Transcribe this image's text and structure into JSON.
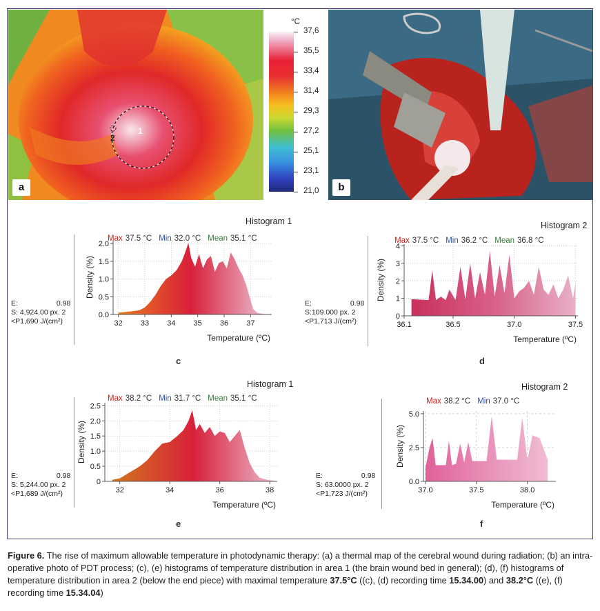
{
  "panel_a": {
    "letter": "a",
    "area_labels": [
      "1",
      "2"
    ],
    "unit": "°C",
    "scale_ticks": [
      "37,6",
      "35,5",
      "33,4",
      "31,4",
      "29,3",
      "27,2",
      "25,1",
      "23,1",
      "21,0"
    ]
  },
  "panel_b": {
    "letter": "b"
  },
  "chart_data": [
    {
      "type": "area",
      "panel": "c",
      "title": "Histogram 1",
      "stats": {
        "max_label": "Max",
        "max": "37.5 °C",
        "min_label": "Min",
        "min": "32.0 °C",
        "mean_label": "Mean",
        "mean": "35.1 °C"
      },
      "side": [
        "E:",
        "0.98",
        "S: 4,924.00  px. 2",
        "<P1,690 J/(cm²)"
      ],
      "xlabel": "Temperature (ºC)",
      "ylabel": "Density (%)",
      "xlim": [
        31.8,
        37.8
      ],
      "ylim": [
        0,
        2.1
      ],
      "x_ticks": [
        32,
        33,
        34,
        35,
        36,
        37
      ],
      "x_tick_labels": [
        "32",
        "33",
        "34",
        "35",
        "36",
        "37"
      ],
      "y_ticks": [
        0,
        0.5,
        1.0,
        1.5,
        2.0
      ],
      "y_tick_labels": [
        "0.0",
        "0.5",
        "1.0",
        "1.5",
        "2.0"
      ],
      "x": [
        32.0,
        32.4,
        32.8,
        33.0,
        33.2,
        33.4,
        33.6,
        33.8,
        34.0,
        34.2,
        34.4,
        34.55,
        34.65,
        34.75,
        34.9,
        35.05,
        35.2,
        35.35,
        35.5,
        35.65,
        35.8,
        35.95,
        36.1,
        36.25,
        36.4,
        36.55,
        36.7,
        36.85,
        37.0,
        37.1,
        37.25,
        37.4,
        37.5
      ],
      "values": [
        0.05,
        0.08,
        0.12,
        0.2,
        0.35,
        0.55,
        0.8,
        1.0,
        1.1,
        1.25,
        1.5,
        1.8,
        2.02,
        1.6,
        1.35,
        1.7,
        1.3,
        1.55,
        1.65,
        1.2,
        1.45,
        1.5,
        1.3,
        1.75,
        1.55,
        1.3,
        1.1,
        0.8,
        0.4,
        0.15,
        0.05,
        0.03,
        0.02
      ],
      "colors": [
        "#e87a1a",
        "#d8203a",
        "#eab8cc"
      ]
    },
    {
      "type": "area",
      "panel": "d",
      "title": "Histogram 2",
      "stats": {
        "max_label": "Max",
        "max": "37.5 °C",
        "min_label": "Min",
        "min": "36.2 °C",
        "mean_label": "Mean",
        "mean": "36.8 °C"
      },
      "side": [
        "E:",
        "0.98",
        "S:109.000  px. 2",
        "<P1,713 J/(cm²)"
      ],
      "xlabel": "Temperature (ºC)",
      "ylabel": "Density (%)",
      "xlim": [
        36.1,
        37.52
      ],
      "ylim": [
        0,
        4.1
      ],
      "x_ticks": [
        36.1,
        36.5,
        37.0,
        37.5
      ],
      "x_tick_labels": [
        "36.1",
        "36.5",
        "37.0",
        "37.5"
      ],
      "y_ticks": [
        0,
        1,
        2,
        3,
        4
      ],
      "y_tick_labels": [
        "0",
        "1",
        "2",
        "3",
        "4"
      ],
      "x": [
        36.16,
        36.3,
        36.33,
        36.36,
        36.4,
        36.44,
        36.47,
        36.52,
        36.56,
        36.6,
        36.64,
        36.68,
        36.72,
        36.76,
        36.8,
        36.84,
        36.88,
        36.92,
        36.96,
        37.0,
        37.04,
        37.08,
        37.12,
        37.16,
        37.2,
        37.24,
        37.28,
        37.32,
        37.36,
        37.4,
        37.44,
        37.48,
        37.5
      ],
      "values": [
        0.95,
        0.9,
        2.6,
        0.9,
        1.1,
        0.9,
        1.5,
        0.9,
        2.8,
        0.95,
        3.0,
        1.0,
        2.5,
        1.2,
        3.7,
        1.1,
        2.9,
        1.3,
        3.5,
        1.0,
        1.4,
        1.6,
        2.0,
        1.2,
        2.8,
        1.5,
        1.2,
        1.8,
        1.0,
        1.5,
        2.3,
        1.0,
        1.9
      ],
      "colors": [
        "#c8305a",
        "#d8608a",
        "#e8b0c6"
      ]
    },
    {
      "type": "area",
      "panel": "e",
      "title": "Histogram 1",
      "stats": {
        "max_label": "Max",
        "max": "38.2 °C",
        "min_label": "Min",
        "min": "31.7 °C",
        "mean_label": "Mean",
        "mean": "35.1 °C"
      },
      "side": [
        "E:",
        "0.98",
        "S: 5,244.00  px. 2",
        "<P1,689 J/(cm²)"
      ],
      "xlabel": "Temperature (ºC)",
      "ylabel": "Density (%)",
      "xlim": [
        31.4,
        38.3
      ],
      "ylim": [
        0,
        2.6
      ],
      "x_ticks": [
        32,
        34,
        36,
        38
      ],
      "x_tick_labels": [
        "32",
        "34",
        "36",
        "38"
      ],
      "y_ticks": [
        0,
        0.5,
        1.0,
        1.5,
        2.0,
        2.5
      ],
      "y_tick_labels": [
        "0",
        "0.5",
        "1.0",
        "1.5",
        "2.0",
        "2.5"
      ],
      "x": [
        31.7,
        32.0,
        32.4,
        32.8,
        33.1,
        33.4,
        33.7,
        34.0,
        34.3,
        34.55,
        34.75,
        34.9,
        35.05,
        35.2,
        35.4,
        35.6,
        35.8,
        36.0,
        36.2,
        36.4,
        36.6,
        36.8,
        37.0,
        37.2,
        37.4,
        37.6,
        37.9,
        38.2
      ],
      "values": [
        0.05,
        0.1,
        0.3,
        0.5,
        0.7,
        1.0,
        1.25,
        1.3,
        1.5,
        1.7,
        2.0,
        2.35,
        1.7,
        1.9,
        1.6,
        1.8,
        1.5,
        1.65,
        1.6,
        1.3,
        1.5,
        1.7,
        1.1,
        0.6,
        0.3,
        0.12,
        0.05,
        0.02
      ],
      "colors": [
        "#d0761c",
        "#d8203a",
        "#eab8cc"
      ]
    },
    {
      "type": "area",
      "panel": "f",
      "title": "Histogram 2",
      "stats": {
        "max_label": "Max",
        "max": "38.2 °C",
        "min_label": "Min",
        "min": "37.0 °C"
      },
      "side": [
        "E:",
        "0.98",
        "S: 63.0000  px. 2",
        "<P1,723 J/(cm²)"
      ],
      "xlabel": "Temperature (ºC)",
      "ylabel": "Density (%)",
      "xlim": [
        36.98,
        38.28
      ],
      "ylim": [
        0,
        5.2
      ],
      "x_ticks": [
        37.0,
        37.5,
        38.0
      ],
      "x_tick_labels": [
        "37.0",
        "37.5",
        "38.0"
      ],
      "y_ticks": [
        0,
        2.5,
        5.0
      ],
      "y_tick_labels": [
        "0.0",
        "2.5",
        "5.0"
      ],
      "x": [
        37.0,
        37.04,
        37.07,
        37.1,
        37.2,
        37.23,
        37.26,
        37.3,
        37.34,
        37.38,
        37.42,
        37.46,
        37.5,
        37.6,
        37.65,
        37.7,
        37.8,
        37.9,
        37.95,
        38.0,
        38.05,
        38.12,
        38.2
      ],
      "values": [
        1.0,
        2.5,
        3.2,
        1.2,
        1.2,
        3.0,
        1.2,
        1.3,
        2.8,
        1.4,
        2.9,
        1.5,
        1.5,
        1.5,
        4.8,
        1.6,
        1.6,
        1.6,
        4.7,
        1.6,
        3.4,
        3.2,
        1.6
      ],
      "colors": [
        "#e0609a",
        "#e890b8",
        "#f0bcd2"
      ]
    }
  ],
  "caption": {
    "figure_label": "Figure 6.",
    "part1": " The rise of maximum allowable temperature in photodynamic therapy: (a) a thermal map of the cerebral wound during radiation; (b) an intra-operative photo of PDT process; (c), (e) histograms of temperature distribution in area 1 (the brain wound bed in general); (d), (f) histograms of temperature distribution in area 2 (below the end piece) with maximal temperature ",
    "temp1": "37.5°C",
    "part2": " ((c), (d) recording time ",
    "time1": "15.34.00",
    "part3": ") and ",
    "temp2": "38.2°C",
    "part4": " ((e), (f) recording time ",
    "time2": "15.34.04",
    "part5": ")"
  }
}
